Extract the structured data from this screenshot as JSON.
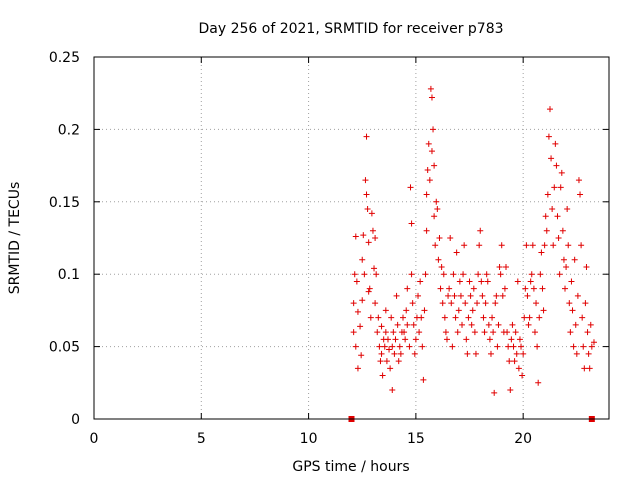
{
  "chart_data": {
    "type": "scatter",
    "title": "Day 256 of 2021, SRMTID for receiver p783",
    "xlabel": "GPS time / hours",
    "ylabel": "SRMTID / TECUs",
    "xlim": [
      0,
      24
    ],
    "ylim": [
      0,
      0.25
    ],
    "xticks": [
      0,
      5,
      10,
      15,
      20
    ],
    "xtick_labels": [
      "0",
      "5",
      "10",
      "15",
      "20"
    ],
    "yticks": [
      0,
      0.05,
      0.1,
      0.15,
      0.2,
      0.25
    ],
    "ytick_labels": [
      "0",
      "0.05",
      "0.1",
      "0.15",
      "0.2",
      "0.25"
    ],
    "grid": true,
    "marker": "+",
    "color": "#e00000",
    "series": [
      {
        "name": "SRMTID",
        "points": [
          [
            12.0,
            0.0
          ],
          [
            23.2,
            0.0
          ],
          [
            12.1,
            0.06
          ],
          [
            12.1,
            0.08
          ],
          [
            12.15,
            0.1
          ],
          [
            12.2,
            0.126
          ],
          [
            12.2,
            0.05
          ],
          [
            12.25,
            0.095
          ],
          [
            12.3,
            0.035
          ],
          [
            12.3,
            0.074
          ],
          [
            12.4,
            0.064
          ],
          [
            12.45,
            0.044
          ],
          [
            12.5,
            0.082
          ],
          [
            12.5,
            0.11
          ],
          [
            12.55,
            0.127
          ],
          [
            12.6,
            0.1
          ],
          [
            12.65,
            0.165
          ],
          [
            12.7,
            0.195
          ],
          [
            12.7,
            0.155
          ],
          [
            12.75,
            0.145
          ],
          [
            12.8,
            0.122
          ],
          [
            12.8,
            0.088
          ],
          [
            12.85,
            0.09
          ],
          [
            12.9,
            0.07
          ],
          [
            12.95,
            0.142
          ],
          [
            13.0,
            0.13
          ],
          [
            13.05,
            0.104
          ],
          [
            13.1,
            0.125
          ],
          [
            13.1,
            0.08
          ],
          [
            13.15,
            0.1
          ],
          [
            13.2,
            0.06
          ],
          [
            13.25,
            0.07
          ],
          [
            13.3,
            0.05
          ],
          [
            13.35,
            0.04
          ],
          [
            13.4,
            0.064
          ],
          [
            13.4,
            0.045
          ],
          [
            13.45,
            0.03
          ],
          [
            13.5,
            0.055
          ],
          [
            13.55,
            0.05
          ],
          [
            13.6,
            0.075
          ],
          [
            13.6,
            0.06
          ],
          [
            13.65,
            0.04
          ],
          [
            13.7,
            0.055
          ],
          [
            13.75,
            0.048
          ],
          [
            13.8,
            0.035
          ],
          [
            13.85,
            0.07
          ],
          [
            13.9,
            0.05
          ],
          [
            13.9,
            0.02
          ],
          [
            13.95,
            0.06
          ],
          [
            14.0,
            0.045
          ],
          [
            14.05,
            0.055
          ],
          [
            14.1,
            0.085
          ],
          [
            14.15,
            0.065
          ],
          [
            14.2,
            0.04
          ],
          [
            14.25,
            0.05
          ],
          [
            14.3,
            0.045
          ],
          [
            14.35,
            0.06
          ],
          [
            14.4,
            0.07
          ],
          [
            14.45,
            0.06
          ],
          [
            14.5,
            0.055
          ],
          [
            14.55,
            0.075
          ],
          [
            14.6,
            0.09
          ],
          [
            14.6,
            0.065
          ],
          [
            14.7,
            0.05
          ],
          [
            14.75,
            0.16
          ],
          [
            14.8,
            0.135
          ],
          [
            14.8,
            0.1
          ],
          [
            14.85,
            0.08
          ],
          [
            14.9,
            0.065
          ],
          [
            14.95,
            0.045
          ],
          [
            15.0,
            0.055
          ],
          [
            15.05,
            0.07
          ],
          [
            15.1,
            0.085
          ],
          [
            15.15,
            0.06
          ],
          [
            15.2,
            0.095
          ],
          [
            15.25,
            0.07
          ],
          [
            15.3,
            0.05
          ],
          [
            15.35,
            0.027
          ],
          [
            15.4,
            0.075
          ],
          [
            15.45,
            0.1
          ],
          [
            15.5,
            0.13
          ],
          [
            15.5,
            0.155
          ],
          [
            15.55,
            0.172
          ],
          [
            15.6,
            0.19
          ],
          [
            15.65,
            0.165
          ],
          [
            15.7,
            0.228
          ],
          [
            15.75,
            0.222
          ],
          [
            15.75,
            0.185
          ],
          [
            15.8,
            0.2
          ],
          [
            15.85,
            0.175
          ],
          [
            15.85,
            0.14
          ],
          [
            15.9,
            0.12
          ],
          [
            15.95,
            0.15
          ],
          [
            16.0,
            0.145
          ],
          [
            16.05,
            0.11
          ],
          [
            16.1,
            0.125
          ],
          [
            16.15,
            0.09
          ],
          [
            16.2,
            0.105
          ],
          [
            16.25,
            0.08
          ],
          [
            16.3,
            0.1
          ],
          [
            16.35,
            0.07
          ],
          [
            16.4,
            0.06
          ],
          [
            16.45,
            0.055
          ],
          [
            16.5,
            0.085
          ],
          [
            16.55,
            0.09
          ],
          [
            16.6,
            0.125
          ],
          [
            16.65,
            0.08
          ],
          [
            16.7,
            0.05
          ],
          [
            16.75,
            0.1
          ],
          [
            16.8,
            0.085
          ],
          [
            16.85,
            0.07
          ],
          [
            16.9,
            0.115
          ],
          [
            16.95,
            0.06
          ],
          [
            17.0,
            0.075
          ],
          [
            17.05,
            0.095
          ],
          [
            17.1,
            0.085
          ],
          [
            17.15,
            0.065
          ],
          [
            17.2,
            0.1
          ],
          [
            17.25,
            0.12
          ],
          [
            17.3,
            0.08
          ],
          [
            17.35,
            0.055
          ],
          [
            17.4,
            0.045
          ],
          [
            17.45,
            0.07
          ],
          [
            17.5,
            0.095
          ],
          [
            17.55,
            0.085
          ],
          [
            17.6,
            0.065
          ],
          [
            17.65,
            0.075
          ],
          [
            17.7,
            0.09
          ],
          [
            17.75,
            0.06
          ],
          [
            17.8,
            0.045
          ],
          [
            17.85,
            0.08
          ],
          [
            17.9,
            0.1
          ],
          [
            17.95,
            0.12
          ],
          [
            18.0,
            0.13
          ],
          [
            18.05,
            0.095
          ],
          [
            18.1,
            0.085
          ],
          [
            18.15,
            0.07
          ],
          [
            18.2,
            0.06
          ],
          [
            18.25,
            0.08
          ],
          [
            18.3,
            0.1
          ],
          [
            18.35,
            0.095
          ],
          [
            18.4,
            0.065
          ],
          [
            18.45,
            0.055
          ],
          [
            18.5,
            0.045
          ],
          [
            18.55,
            0.07
          ],
          [
            18.6,
            0.06
          ],
          [
            18.65,
            0.018
          ],
          [
            18.7,
            0.08
          ],
          [
            18.75,
            0.085
          ],
          [
            18.8,
            0.05
          ],
          [
            18.85,
            0.065
          ],
          [
            18.9,
            0.105
          ],
          [
            18.95,
            0.1
          ],
          [
            19.0,
            0.12
          ],
          [
            19.05,
            0.085
          ],
          [
            19.1,
            0.06
          ],
          [
            19.15,
            0.09
          ],
          [
            19.2,
            0.105
          ],
          [
            19.25,
            0.06
          ],
          [
            19.3,
            0.05
          ],
          [
            19.35,
            0.04
          ],
          [
            19.4,
            0.02
          ],
          [
            19.45,
            0.055
          ],
          [
            19.5,
            0.065
          ],
          [
            19.55,
            0.05
          ],
          [
            19.6,
            0.04
          ],
          [
            19.65,
            0.06
          ],
          [
            19.7,
            0.045
          ],
          [
            19.75,
            0.095
          ],
          [
            19.8,
            0.035
          ],
          [
            19.85,
            0.055
          ],
          [
            19.9,
            0.05
          ],
          [
            19.95,
            0.03
          ],
          [
            20.0,
            0.045
          ],
          [
            20.05,
            0.07
          ],
          [
            20.1,
            0.09
          ],
          [
            20.15,
            0.12
          ],
          [
            20.2,
            0.085
          ],
          [
            20.25,
            0.065
          ],
          [
            20.3,
            0.07
          ],
          [
            20.35,
            0.095
          ],
          [
            20.4,
            0.1
          ],
          [
            20.45,
            0.12
          ],
          [
            20.5,
            0.09
          ],
          [
            20.55,
            0.06
          ],
          [
            20.6,
            0.08
          ],
          [
            20.65,
            0.05
          ],
          [
            20.7,
            0.025
          ],
          [
            20.75,
            0.07
          ],
          [
            20.8,
            0.1
          ],
          [
            20.85,
            0.115
          ],
          [
            20.9,
            0.09
          ],
          [
            20.95,
            0.075
          ],
          [
            21.0,
            0.12
          ],
          [
            21.05,
            0.14
          ],
          [
            21.1,
            0.13
          ],
          [
            21.15,
            0.155
          ],
          [
            21.2,
            0.195
          ],
          [
            21.25,
            0.214
          ],
          [
            21.3,
            0.18
          ],
          [
            21.35,
            0.145
          ],
          [
            21.4,
            0.12
          ],
          [
            21.45,
            0.16
          ],
          [
            21.5,
            0.19
          ],
          [
            21.55,
            0.175
          ],
          [
            21.6,
            0.14
          ],
          [
            21.65,
            0.125
          ],
          [
            21.7,
            0.1
          ],
          [
            21.75,
            0.16
          ],
          [
            21.8,
            0.17
          ],
          [
            21.85,
            0.13
          ],
          [
            21.9,
            0.11
          ],
          [
            21.95,
            0.09
          ],
          [
            22.0,
            0.105
          ],
          [
            22.05,
            0.145
          ],
          [
            22.1,
            0.12
          ],
          [
            22.15,
            0.08
          ],
          [
            22.2,
            0.06
          ],
          [
            22.25,
            0.095
          ],
          [
            22.3,
            0.075
          ],
          [
            22.35,
            0.05
          ],
          [
            22.4,
            0.11
          ],
          [
            22.45,
            0.065
          ],
          [
            22.5,
            0.045
          ],
          [
            22.55,
            0.085
          ],
          [
            22.6,
            0.165
          ],
          [
            22.65,
            0.155
          ],
          [
            22.7,
            0.12
          ],
          [
            22.75,
            0.07
          ],
          [
            22.8,
            0.05
          ],
          [
            22.85,
            0.035
          ],
          [
            22.9,
            0.08
          ],
          [
            22.95,
            0.105
          ],
          [
            23.0,
            0.06
          ],
          [
            23.05,
            0.045
          ],
          [
            23.1,
            0.035
          ],
          [
            23.15,
            0.065
          ],
          [
            23.2,
            0.05
          ],
          [
            23.3,
            0.053
          ]
        ]
      }
    ]
  }
}
